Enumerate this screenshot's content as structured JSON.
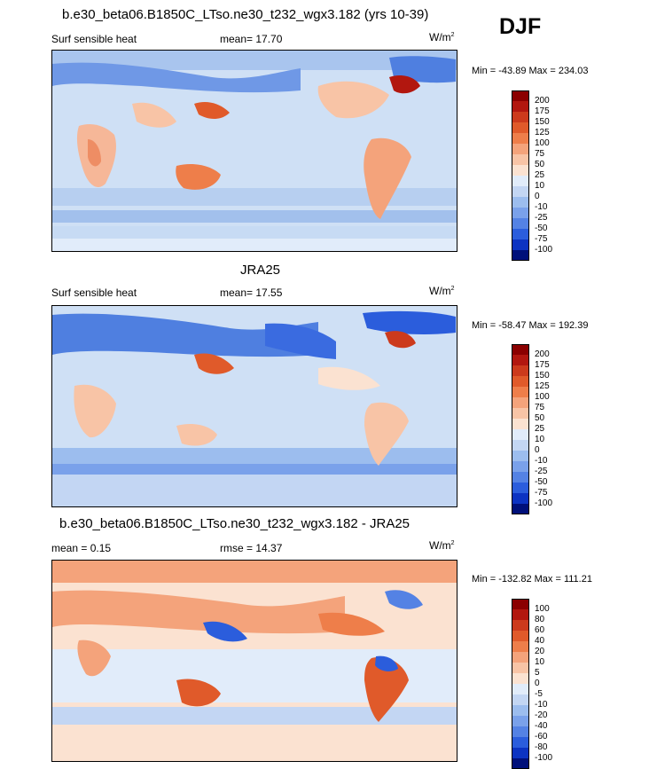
{
  "season": "DJF",
  "panels": [
    {
      "title": "b.e30_beta06.B1850C_LTso.ne30_t232_wgx3.182 (yrs 10-39)",
      "variable": "Surf sensible heat",
      "stat1": "mean=  17.70",
      "stat2": "",
      "units": "W/m",
      "units_sup": "2",
      "minmax": "Min = -43.89 Max = 234.03",
      "colorbar": {
        "levels": [
          "200",
          "175",
          "150",
          "125",
          "100",
          "75",
          "50",
          "25",
          "10",
          "0",
          "-10",
          "-25",
          "-50",
          "-75",
          "-100"
        ],
        "colors": [
          "#8b0000",
          "#b2170f",
          "#cc3a1c",
          "#e05a2a",
          "#ee7e4a",
          "#f4a37b",
          "#f8c4a6",
          "#fbe2d1",
          "#e1ecfa",
          "#c3d6f3",
          "#9cbdee",
          "#7aa1ea",
          "#5482e4",
          "#2b5ddc",
          "#0c33c2",
          "#00107a"
        ]
      }
    },
    {
      "title": "JRA25",
      "variable": "Surf sensible heat",
      "stat1": "mean=  17.55",
      "stat2": "",
      "units": "W/m",
      "units_sup": "2",
      "minmax": "Min = -58.47 Max = 192.39",
      "colorbar": {
        "levels": [
          "200",
          "175",
          "150",
          "125",
          "100",
          "75",
          "50",
          "25",
          "10",
          "0",
          "-10",
          "-25",
          "-50",
          "-75",
          "-100"
        ],
        "colors": [
          "#8b0000",
          "#b2170f",
          "#cc3a1c",
          "#e05a2a",
          "#ee7e4a",
          "#f4a37b",
          "#f8c4a6",
          "#fbe2d1",
          "#e1ecfa",
          "#c3d6f3",
          "#9cbdee",
          "#7aa1ea",
          "#5482e4",
          "#2b5ddc",
          "#0c33c2",
          "#00107a"
        ]
      }
    },
    {
      "title": "b.e30_beta06.B1850C_LTso.ne30_t232_wgx3.182 - JRA25",
      "variable": "",
      "stat1": "mean =   0.15",
      "stat2": "rmse =  14.37",
      "units": "W/m",
      "units_sup": "2",
      "minmax": "Min = -132.82 Max = 111.21",
      "colorbar": {
        "levels": [
          "100",
          "80",
          "60",
          "40",
          "20",
          "10",
          "5",
          "0",
          "-5",
          "-10",
          "-20",
          "-40",
          "-60",
          "-80",
          "-100"
        ],
        "colors": [
          "#8b0000",
          "#b2170f",
          "#cc3a1c",
          "#e05a2a",
          "#ee7e4a",
          "#f4a37b",
          "#f8c4a6",
          "#fbe2d1",
          "#e1ecfa",
          "#c3d6f3",
          "#9cbdee",
          "#7aa1ea",
          "#5482e4",
          "#2b5ddc",
          "#0c33c2",
          "#00107a"
        ]
      }
    }
  ]
}
